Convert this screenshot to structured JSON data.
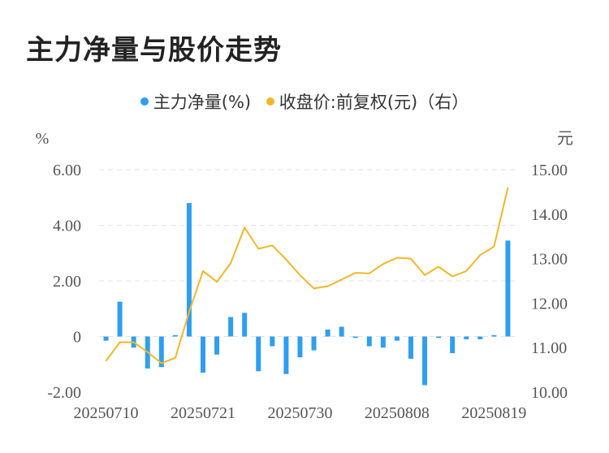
{
  "title": "主力净量与股价走势",
  "legend": {
    "series1": "主力净量(%)",
    "series2": "收盘价:前复权(元)（右）"
  },
  "colors": {
    "bar": "#2e9ff0",
    "line": "#f3b726",
    "grid": "#e2e2e2",
    "axis_text": "#555555"
  },
  "chart_data": {
    "type": "bar+line",
    "left_unit": "%",
    "right_unit": "元",
    "ylim_left": [
      -2,
      6
    ],
    "ylim_right": [
      10,
      15
    ],
    "left_ticks": [
      "-2.00",
      "0",
      "2.00",
      "4.00",
      "6.00"
    ],
    "left_tick_values": [
      -2,
      0,
      2,
      4,
      6
    ],
    "right_ticks": [
      "10.00",
      "11.00",
      "12.00",
      "13.00",
      "14.00",
      "15.00"
    ],
    "right_tick_values": [
      10,
      11,
      12,
      13,
      14,
      15
    ],
    "x_ticks": [
      {
        "label": "20250710",
        "index": 0
      },
      {
        "label": "20250721",
        "index": 7
      },
      {
        "label": "20250730",
        "index": 14
      },
      {
        "label": "20250808",
        "index": 21
      },
      {
        "label": "20250819",
        "index": 28
      }
    ],
    "bar_values": [
      -0.15,
      1.25,
      -0.4,
      -1.15,
      -1.1,
      0.05,
      4.8,
      -1.3,
      -0.65,
      0.7,
      0.85,
      -1.25,
      -0.35,
      -1.35,
      -0.75,
      -0.5,
      0.25,
      0.35,
      -0.05,
      -0.35,
      -0.4,
      -0.15,
      -0.8,
      -1.75,
      -0.05,
      -0.6,
      -0.1,
      -0.1,
      0.05,
      3.45
    ],
    "line_values": [
      10.7,
      11.12,
      11.12,
      10.9,
      10.65,
      10.77,
      11.8,
      12.72,
      12.48,
      12.9,
      13.7,
      13.22,
      13.3,
      12.98,
      12.63,
      12.33,
      12.38,
      12.53,
      12.68,
      12.67,
      12.88,
      13.02,
      13.0,
      12.63,
      12.82,
      12.6,
      12.72,
      13.08,
      13.27,
      14.6
    ]
  }
}
